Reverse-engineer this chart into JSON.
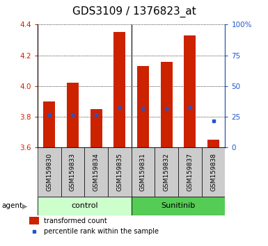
{
  "title": "GDS3109 / 1376823_at",
  "samples": [
    "GSM159830",
    "GSM159833",
    "GSM159834",
    "GSM159835",
    "GSM159831",
    "GSM159832",
    "GSM159837",
    "GSM159838"
  ],
  "bar_tops": [
    3.9,
    4.02,
    3.85,
    4.35,
    4.13,
    4.16,
    4.33,
    3.65
  ],
  "bar_bottom": 3.6,
  "percentile_values": [
    3.815,
    3.815,
    3.815,
    3.86,
    3.855,
    3.855,
    3.865,
    3.775
  ],
  "ylim": [
    3.6,
    4.4
  ],
  "yticks": [
    3.6,
    3.8,
    4.0,
    4.2,
    4.4
  ],
  "y2ticks": [
    0,
    25,
    50,
    75,
    100
  ],
  "y2labels": [
    "0",
    "25",
    "50",
    "75",
    "100%"
  ],
  "bar_color": "#cc2200",
  "percentile_color": "#2255cc",
  "control_bg": "#ccffcc",
  "sunitinib_bg": "#55cc55",
  "xlabel_bg": "#cccccc",
  "ylabel_left_color": "#cc2200",
  "ylabel_right_color": "#2255cc",
  "title_fontsize": 11,
  "tick_fontsize": 7.5,
  "label_fontsize": 6.5,
  "group_fontsize": 8,
  "legend_fontsize": 7,
  "agent_label": "agent",
  "group_labels": [
    "control",
    "Sunitinib"
  ],
  "legend_items": [
    "transformed count",
    "percentile rank within the sample"
  ],
  "bar_width": 0.5
}
